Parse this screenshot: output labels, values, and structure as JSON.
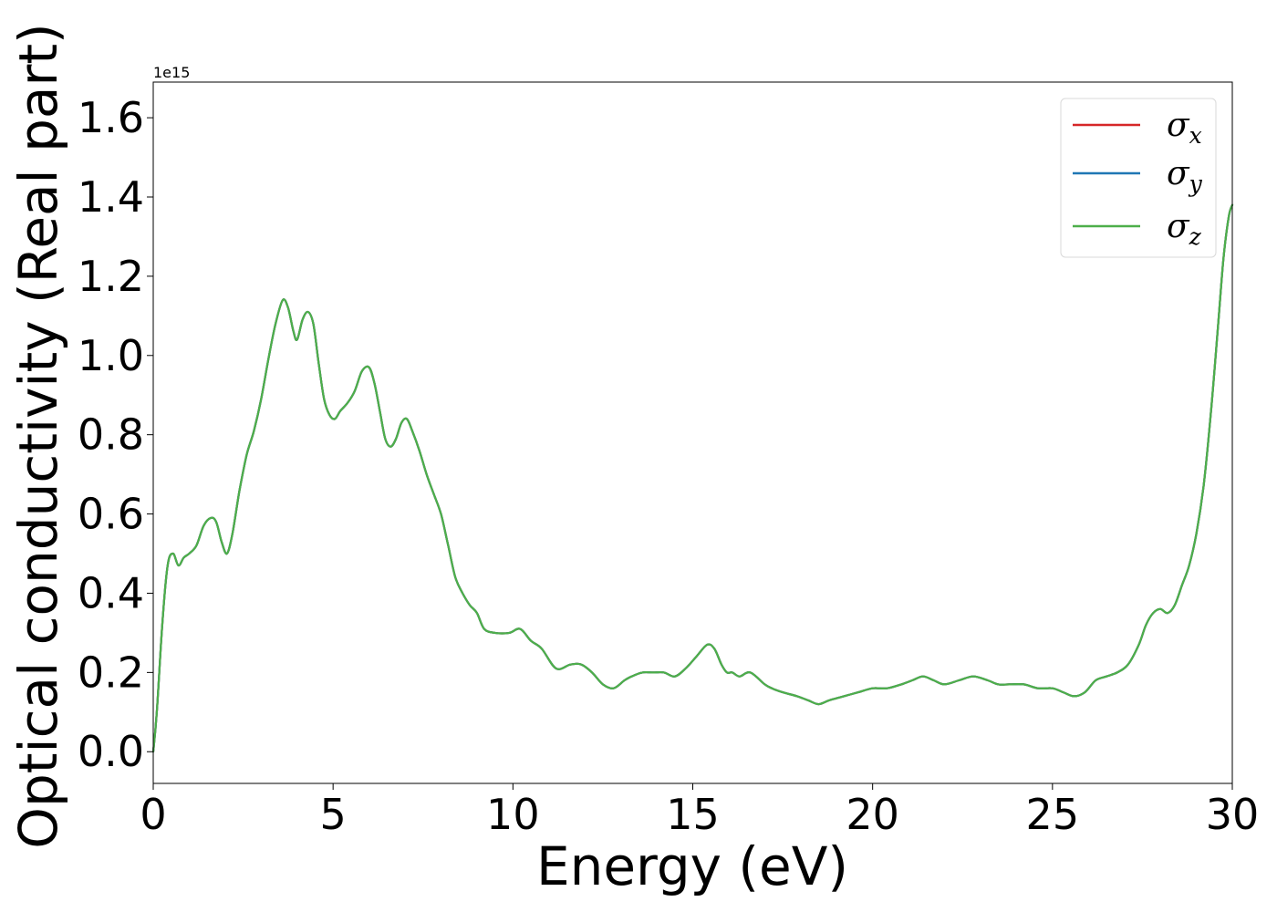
{
  "chart_data": {
    "type": "line",
    "xlabel": "Energy (eV)",
    "ylabel": "Optical conductivity (Real part)",
    "y_offset_text": "1e15",
    "y_scale_factor": 1000000000000000.0,
    "xlim": [
      0,
      30
    ],
    "ylim": [
      -0.08,
      1.69
    ],
    "x_ticks": [
      0,
      5,
      10,
      15,
      20,
      25,
      30
    ],
    "x_tick_labels": [
      "0",
      "5",
      "10",
      "15",
      "20",
      "25",
      "30"
    ],
    "y_ticks": [
      0.0,
      0.2,
      0.4,
      0.6,
      0.8,
      1.0,
      1.2,
      1.4,
      1.6
    ],
    "y_tick_labels": [
      "0.0",
      "0.2",
      "0.4",
      "0.6",
      "0.8",
      "1.0",
      "1.2",
      "1.4",
      "1.6"
    ],
    "grid": false,
    "legend_position": "top-right",
    "series": [
      {
        "name": "σx",
        "symbol": "σ",
        "subscript": "x",
        "color": "#d62728"
      },
      {
        "name": "σy",
        "symbol": "σ",
        "subscript": "y",
        "color": "#1f77b4"
      },
      {
        "name": "σz",
        "symbol": "σ",
        "subscript": "z",
        "color": "#4daf4a"
      }
    ],
    "shared_curve": {
      "x": [
        0,
        0.1,
        0.25,
        0.4,
        0.55,
        0.7,
        0.85,
        1.0,
        1.2,
        1.4,
        1.6,
        1.75,
        1.9,
        2.05,
        2.2,
        2.4,
        2.6,
        2.8,
        3.0,
        3.2,
        3.4,
        3.6,
        3.75,
        3.9,
        4.0,
        4.15,
        4.3,
        4.45,
        4.6,
        4.75,
        4.9,
        5.05,
        5.2,
        5.4,
        5.6,
        5.8,
        6.0,
        6.15,
        6.3,
        6.45,
        6.6,
        6.75,
        6.9,
        7.05,
        7.2,
        7.4,
        7.6,
        7.8,
        8.0,
        8.2,
        8.4,
        8.6,
        8.8,
        9.0,
        9.2,
        9.5,
        9.9,
        10.2,
        10.5,
        10.8,
        11.2,
        11.6,
        11.9,
        12.2,
        12.5,
        12.8,
        13.1,
        13.3,
        13.6,
        13.9,
        14.2,
        14.5,
        14.8,
        15.1,
        15.4,
        15.6,
        15.8,
        15.95,
        16.1,
        16.3,
        16.6,
        17.0,
        17.2,
        17.5,
        17.9,
        18.2,
        18.5,
        18.8,
        19.2,
        19.6,
        20.0,
        20.4,
        20.8,
        21.1,
        21.4,
        21.7,
        22.0,
        22.4,
        22.8,
        23.2,
        23.5,
        23.8,
        24.2,
        24.6,
        25.0,
        25.3,
        25.6,
        25.9,
        26.2,
        26.5,
        26.8,
        27.1,
        27.4,
        27.6,
        27.8,
        28.0,
        28.2,
        28.4,
        28.6,
        28.8,
        29.0,
        29.2,
        29.4,
        29.6,
        29.75,
        29.9,
        30.0
      ],
      "y": [
        0.0,
        0.1,
        0.32,
        0.47,
        0.5,
        0.47,
        0.49,
        0.5,
        0.52,
        0.57,
        0.59,
        0.58,
        0.53,
        0.5,
        0.55,
        0.66,
        0.75,
        0.81,
        0.89,
        0.99,
        1.08,
        1.14,
        1.12,
        1.06,
        1.04,
        1.09,
        1.11,
        1.08,
        0.98,
        0.89,
        0.85,
        0.84,
        0.86,
        0.88,
        0.91,
        0.96,
        0.97,
        0.93,
        0.86,
        0.79,
        0.77,
        0.79,
        0.83,
        0.84,
        0.81,
        0.76,
        0.7,
        0.65,
        0.6,
        0.52,
        0.44,
        0.4,
        0.37,
        0.35,
        0.31,
        0.3,
        0.3,
        0.31,
        0.28,
        0.26,
        0.21,
        0.22,
        0.22,
        0.2,
        0.17,
        0.16,
        0.18,
        0.19,
        0.2,
        0.2,
        0.2,
        0.19,
        0.21,
        0.24,
        0.27,
        0.26,
        0.22,
        0.2,
        0.2,
        0.19,
        0.2,
        0.17,
        0.16,
        0.15,
        0.14,
        0.13,
        0.12,
        0.13,
        0.14,
        0.15,
        0.16,
        0.16,
        0.17,
        0.18,
        0.19,
        0.18,
        0.17,
        0.18,
        0.19,
        0.18,
        0.17,
        0.17,
        0.17,
        0.16,
        0.16,
        0.15,
        0.14,
        0.15,
        0.18,
        0.19,
        0.2,
        0.22,
        0.27,
        0.32,
        0.35,
        0.36,
        0.35,
        0.37,
        0.42,
        0.47,
        0.55,
        0.67,
        0.85,
        1.07,
        1.24,
        1.35,
        1.38
      ]
    }
  }
}
